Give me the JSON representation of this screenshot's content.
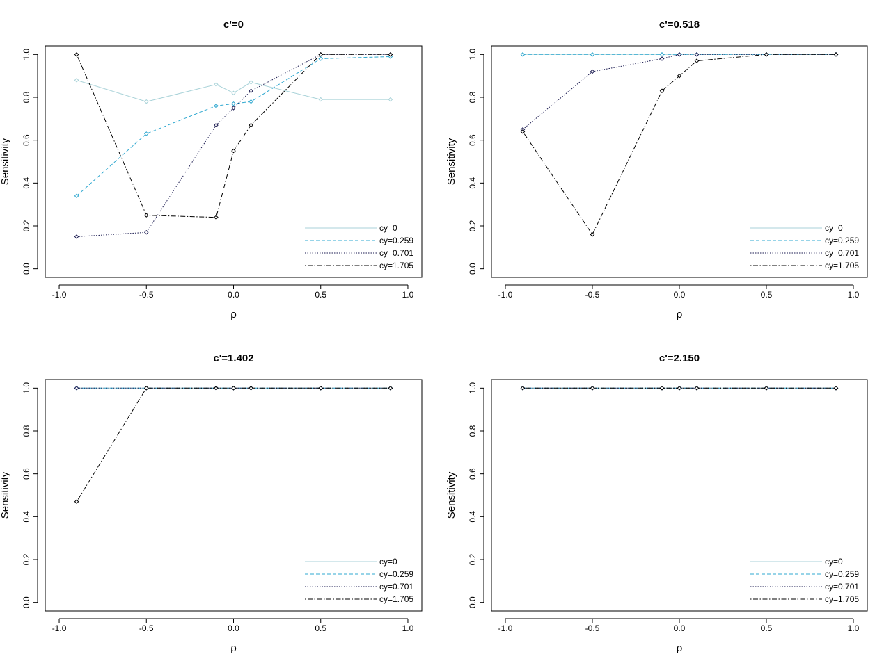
{
  "figure": {
    "x_ticks": [
      "-1.0",
      "-0.5",
      "0.0",
      "0.5",
      "1.0"
    ],
    "y_ticks": [
      "0.0",
      "0.2",
      "0.4",
      "0.6",
      "0.8",
      "1.0"
    ]
  },
  "chart_data": [
    {
      "type": "line",
      "title": "c'=0",
      "xlabel": "ρ",
      "ylabel": "Sensitivity",
      "xlim": [
        -1.0,
        1.0
      ],
      "ylim": [
        0.0,
        1.0
      ],
      "x": [
        -0.9,
        -0.5,
        -0.1,
        0.0,
        0.1,
        0.5,
        0.9
      ],
      "legend_position": "bottom-right",
      "series": [
        {
          "name": "cy=0",
          "color": "#a8d2d8",
          "dash": "solid",
          "values": [
            0.88,
            0.78,
            0.86,
            0.82,
            0.87,
            0.79,
            0.79
          ]
        },
        {
          "name": "cy=0.259",
          "color": "#2fa8d0",
          "dash": "dashed",
          "values": [
            0.34,
            0.63,
            0.76,
            0.77,
            0.78,
            0.98,
            0.99
          ]
        },
        {
          "name": "cy=0.701",
          "color": "#1a1a50",
          "dash": "dotted",
          "values": [
            0.15,
            0.17,
            0.67,
            0.75,
            0.83,
            1.0,
            1.0
          ]
        },
        {
          "name": "cy=1.705",
          "color": "#000000",
          "dash": "dotdash",
          "values": [
            1.0,
            0.25,
            0.24,
            0.55,
            0.67,
            1.0,
            1.0
          ]
        }
      ]
    },
    {
      "type": "line",
      "title": "c'=0.518",
      "xlabel": "ρ",
      "ylabel": "Sensitivity",
      "xlim": [
        -1.0,
        1.0
      ],
      "ylim": [
        0.0,
        1.0
      ],
      "x": [
        -0.9,
        -0.5,
        -0.1,
        0.0,
        0.1,
        0.5,
        0.9
      ],
      "legend_position": "bottom-right",
      "series": [
        {
          "name": "cy=0",
          "color": "#a8d2d8",
          "dash": "solid",
          "values": [
            1.0,
            1.0,
            1.0,
            1.0,
            1.0,
            1.0,
            1.0
          ]
        },
        {
          "name": "cy=0.259",
          "color": "#2fa8d0",
          "dash": "dashed",
          "values": [
            1.0,
            1.0,
            1.0,
            1.0,
            1.0,
            1.0,
            1.0
          ]
        },
        {
          "name": "cy=0.701",
          "color": "#1a1a50",
          "dash": "dotted",
          "values": [
            0.65,
            0.92,
            0.98,
            1.0,
            1.0,
            1.0,
            1.0
          ]
        },
        {
          "name": "cy=1.705",
          "color": "#000000",
          "dash": "dotdash",
          "values": [
            0.64,
            0.16,
            0.83,
            0.9,
            0.97,
            1.0,
            1.0
          ]
        }
      ]
    },
    {
      "type": "line",
      "title": "c'=1.402",
      "xlabel": "ρ",
      "ylabel": "Sensitivity",
      "xlim": [
        -1.0,
        1.0
      ],
      "ylim": [
        0.0,
        1.0
      ],
      "x": [
        -0.9,
        -0.5,
        -0.1,
        0.0,
        0.1,
        0.5,
        0.9
      ],
      "legend_position": "bottom-right",
      "series": [
        {
          "name": "cy=0",
          "color": "#a8d2d8",
          "dash": "solid",
          "values": [
            1.0,
            1.0,
            1.0,
            1.0,
            1.0,
            1.0,
            1.0
          ]
        },
        {
          "name": "cy=0.259",
          "color": "#2fa8d0",
          "dash": "dashed",
          "values": [
            1.0,
            1.0,
            1.0,
            1.0,
            1.0,
            1.0,
            1.0
          ]
        },
        {
          "name": "cy=0.701",
          "color": "#1a1a50",
          "dash": "dotted",
          "values": [
            1.0,
            1.0,
            1.0,
            1.0,
            1.0,
            1.0,
            1.0
          ]
        },
        {
          "name": "cy=1.705",
          "color": "#000000",
          "dash": "dotdash",
          "values": [
            0.47,
            1.0,
            1.0,
            1.0,
            1.0,
            1.0,
            1.0
          ]
        }
      ]
    },
    {
      "type": "line",
      "title": "c'=2.150",
      "xlabel": "ρ",
      "ylabel": "Sensitivity",
      "xlim": [
        -1.0,
        1.0
      ],
      "ylim": [
        0.0,
        1.0
      ],
      "x": [
        -0.9,
        -0.5,
        -0.1,
        0.0,
        0.1,
        0.5,
        0.9
      ],
      "legend_position": "bottom-right",
      "series": [
        {
          "name": "cy=0",
          "color": "#a8d2d8",
          "dash": "solid",
          "values": [
            1.0,
            1.0,
            1.0,
            1.0,
            1.0,
            1.0,
            1.0
          ]
        },
        {
          "name": "cy=0.259",
          "color": "#2fa8d0",
          "dash": "dashed",
          "values": [
            1.0,
            1.0,
            1.0,
            1.0,
            1.0,
            1.0,
            1.0
          ]
        },
        {
          "name": "cy=0.701",
          "color": "#1a1a50",
          "dash": "dotted",
          "values": [
            1.0,
            1.0,
            1.0,
            1.0,
            1.0,
            1.0,
            1.0
          ]
        },
        {
          "name": "cy=1.705",
          "color": "#000000",
          "dash": "dotdash",
          "values": [
            1.0,
            1.0,
            1.0,
            1.0,
            1.0,
            1.0,
            1.0
          ]
        }
      ]
    }
  ]
}
